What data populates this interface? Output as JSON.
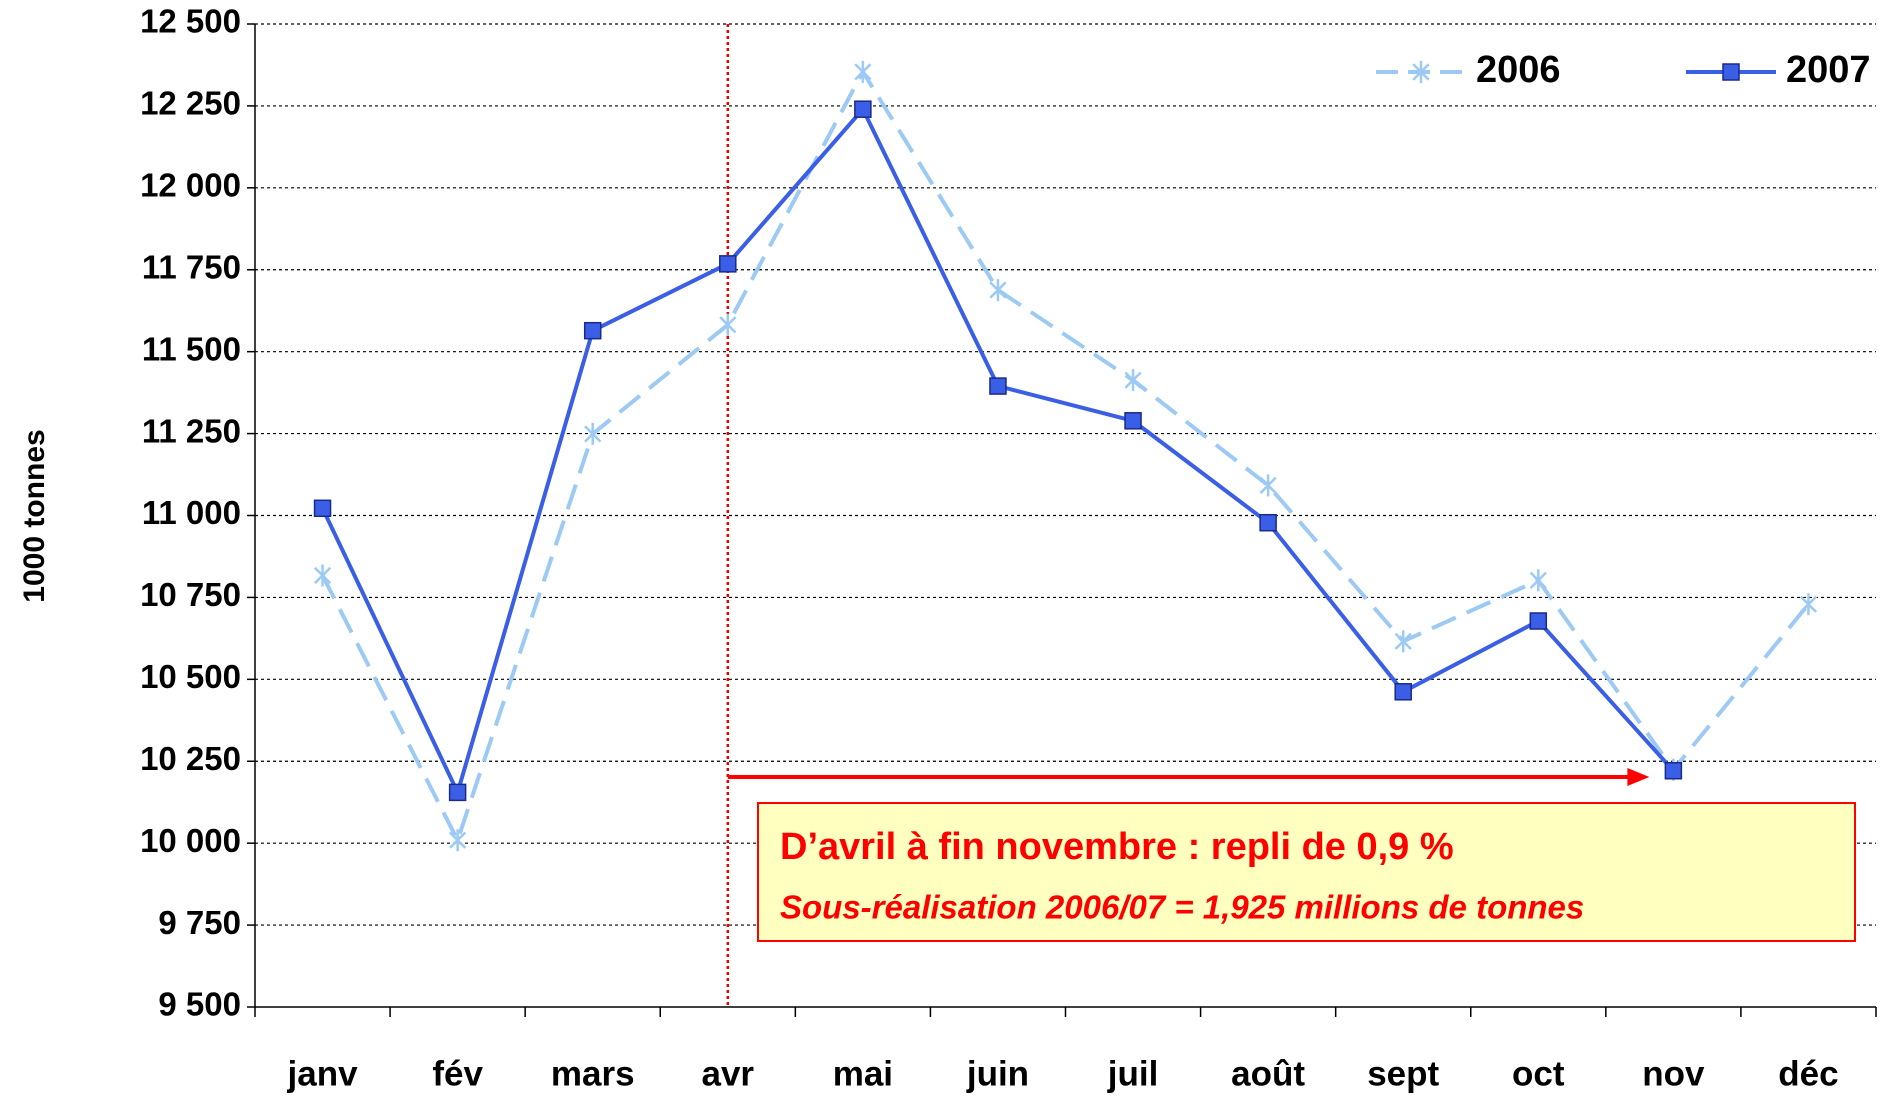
{
  "chart_data": {
    "type": "line",
    "y_label": "1000 tonnes",
    "categories": [
      "janv",
      "fév",
      "mars",
      "avr",
      "mai",
      "juin",
      "juil",
      "août",
      "sept",
      "oct",
      "nov",
      "déc"
    ],
    "series": [
      {
        "name": "2006",
        "color": "#9ccaf4",
        "marker": "asterisk",
        "dashed": true,
        "values": [
          10817,
          10009,
          11249,
          11582,
          12354,
          11688,
          11413,
          11092,
          10616,
          10802,
          10224,
          10729
        ]
      },
      {
        "name": "2007",
        "color": "#3a5fe6",
        "marker": "square",
        "dashed": false,
        "values": [
          11022,
          10155,
          11564,
          11768,
          12240,
          11395,
          11289,
          10978,
          10462,
          10678,
          10221,
          null
        ]
      }
    ],
    "ylim": [
      9500,
      12500
    ],
    "yticks": [
      {
        "value": 9500,
        "label": "9 500"
      },
      {
        "value": 9750,
        "label": "9 750"
      },
      {
        "value": 10000,
        "label": "10 000"
      },
      {
        "value": 10250,
        "label": "10 250"
      },
      {
        "value": 10500,
        "label": "10 500"
      },
      {
        "value": 10750,
        "label": "10 750"
      },
      {
        "value": 11000,
        "label": "11 000"
      },
      {
        "value": 11250,
        "label": "11 250"
      },
      {
        "value": 11500,
        "label": "11 500"
      },
      {
        "value": 11750,
        "label": "11 750"
      },
      {
        "value": 12000,
        "label": "12 000"
      },
      {
        "value": 12250,
        "label": "12 250"
      },
      {
        "value": 12500,
        "label": "12 500"
      }
    ],
    "grid": true,
    "legend": "top-right",
    "annotations": [
      "D’avril à fin novembre : repli  de 0,9 %",
      "Sous-réalisation 2006/07 = 1,925 millions de tonnes"
    ]
  }
}
